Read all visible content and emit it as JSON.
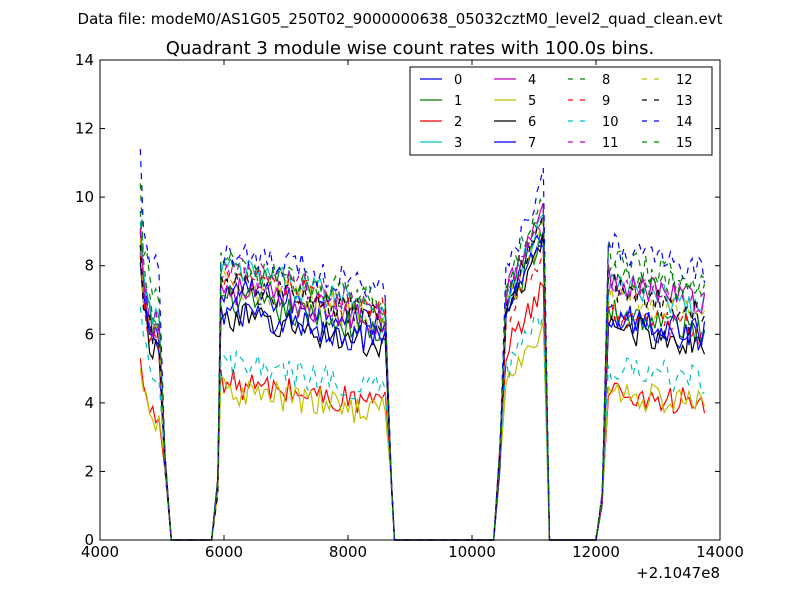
{
  "suptitle": "Data file: modeM0/AS1G05_250T02_9000000638_05032cztM0_level2_quad_clean.evt",
  "chart_data": {
    "type": "line",
    "title": "Quadrant 3 module wise count rates with 100.0s bins.",
    "xlabel": "",
    "ylabel": "",
    "x_offset_label": "+2.1047e8",
    "xlim": [
      4000,
      14000
    ],
    "ylim": [
      0,
      14
    ],
    "xticks": [
      4000,
      6000,
      8000,
      10000,
      12000,
      14000
    ],
    "yticks": [
      0,
      2,
      4,
      6,
      8,
      10,
      12,
      14
    ],
    "legend_position": "top-right",
    "legend_columns": 4,
    "series": [
      {
        "name": "0",
        "color": "#0000ff",
        "dash": "solid",
        "levels": [
          8.6,
          6.6,
          7.8,
          6.0
        ]
      },
      {
        "name": "1",
        "color": "#008000",
        "dash": "solid",
        "levels": [
          9.0,
          6.3,
          7.5,
          6.2
        ]
      },
      {
        "name": "2",
        "color": "#ff0000",
        "dash": "solid",
        "levels": [
          5.3,
          4.1,
          6.3,
          4.0
        ]
      },
      {
        "name": "3",
        "color": "#00bfbf",
        "dash": "solid",
        "levels": [
          9.3,
          7.1,
          8.0,
          6.9
        ]
      },
      {
        "name": "4",
        "color": "#bf00bf",
        "dash": "solid",
        "levels": [
          9.0,
          6.6,
          8.2,
          7.1
        ]
      },
      {
        "name": "5",
        "color": "#bfbf00",
        "dash": "solid",
        "levels": [
          5.0,
          3.9,
          5.2,
          4.0
        ]
      },
      {
        "name": "6",
        "color": "#000000",
        "dash": "solid",
        "levels": [
          8.1,
          5.9,
          7.3,
          5.8
        ]
      },
      {
        "name": "7",
        "color": "#0000ff",
        "dash": "solid",
        "levels": [
          8.4,
          6.0,
          7.5,
          6.1
        ]
      },
      {
        "name": "8",
        "color": "#008000",
        "dash": "dashed",
        "levels": [
          9.6,
          7.1,
          8.1,
          7.6
        ]
      },
      {
        "name": "9",
        "color": "#ff0000",
        "dash": "dashed",
        "levels": [
          8.3,
          6.9,
          7.2,
          6.2
        ]
      },
      {
        "name": "10",
        "color": "#00bfbf",
        "dash": "dashed",
        "levels": [
          6.8,
          4.6,
          5.6,
          4.7
        ]
      },
      {
        "name": "11",
        "color": "#bf00bf",
        "dash": "dashed",
        "levels": [
          9.1,
          7.1,
          8.1,
          7.0
        ]
      },
      {
        "name": "12",
        "color": "#bfbf00",
        "dash": "dashed",
        "levels": [
          8.8,
          6.7,
          7.7,
          6.7
        ]
      },
      {
        "name": "13",
        "color": "#000000",
        "dash": "dashed",
        "levels": [
          8.6,
          6.7,
          7.8,
          6.8
        ]
      },
      {
        "name": "14",
        "color": "#0000ff",
        "dash": "dashed",
        "levels": [
          11.4,
          7.6,
          8.9,
          8.0
        ]
      },
      {
        "name": "15",
        "color": "#008000",
        "dash": "dashed",
        "levels": [
          10.4,
          7.2,
          8.5,
          7.3
        ]
      }
    ],
    "time_segments": [
      {
        "start": 4650,
        "end": 4950,
        "note": "decays to 0 near 5100"
      },
      {
        "start": 5950,
        "end": 8600,
        "note": "rises from 0 at 5800"
      },
      {
        "start": 10550,
        "end": 11150,
        "note": "rises from 0 at 10350, increasing"
      },
      {
        "start": 12200,
        "end": 13750,
        "note": "rises from 0 at 12000"
      }
    ]
  }
}
